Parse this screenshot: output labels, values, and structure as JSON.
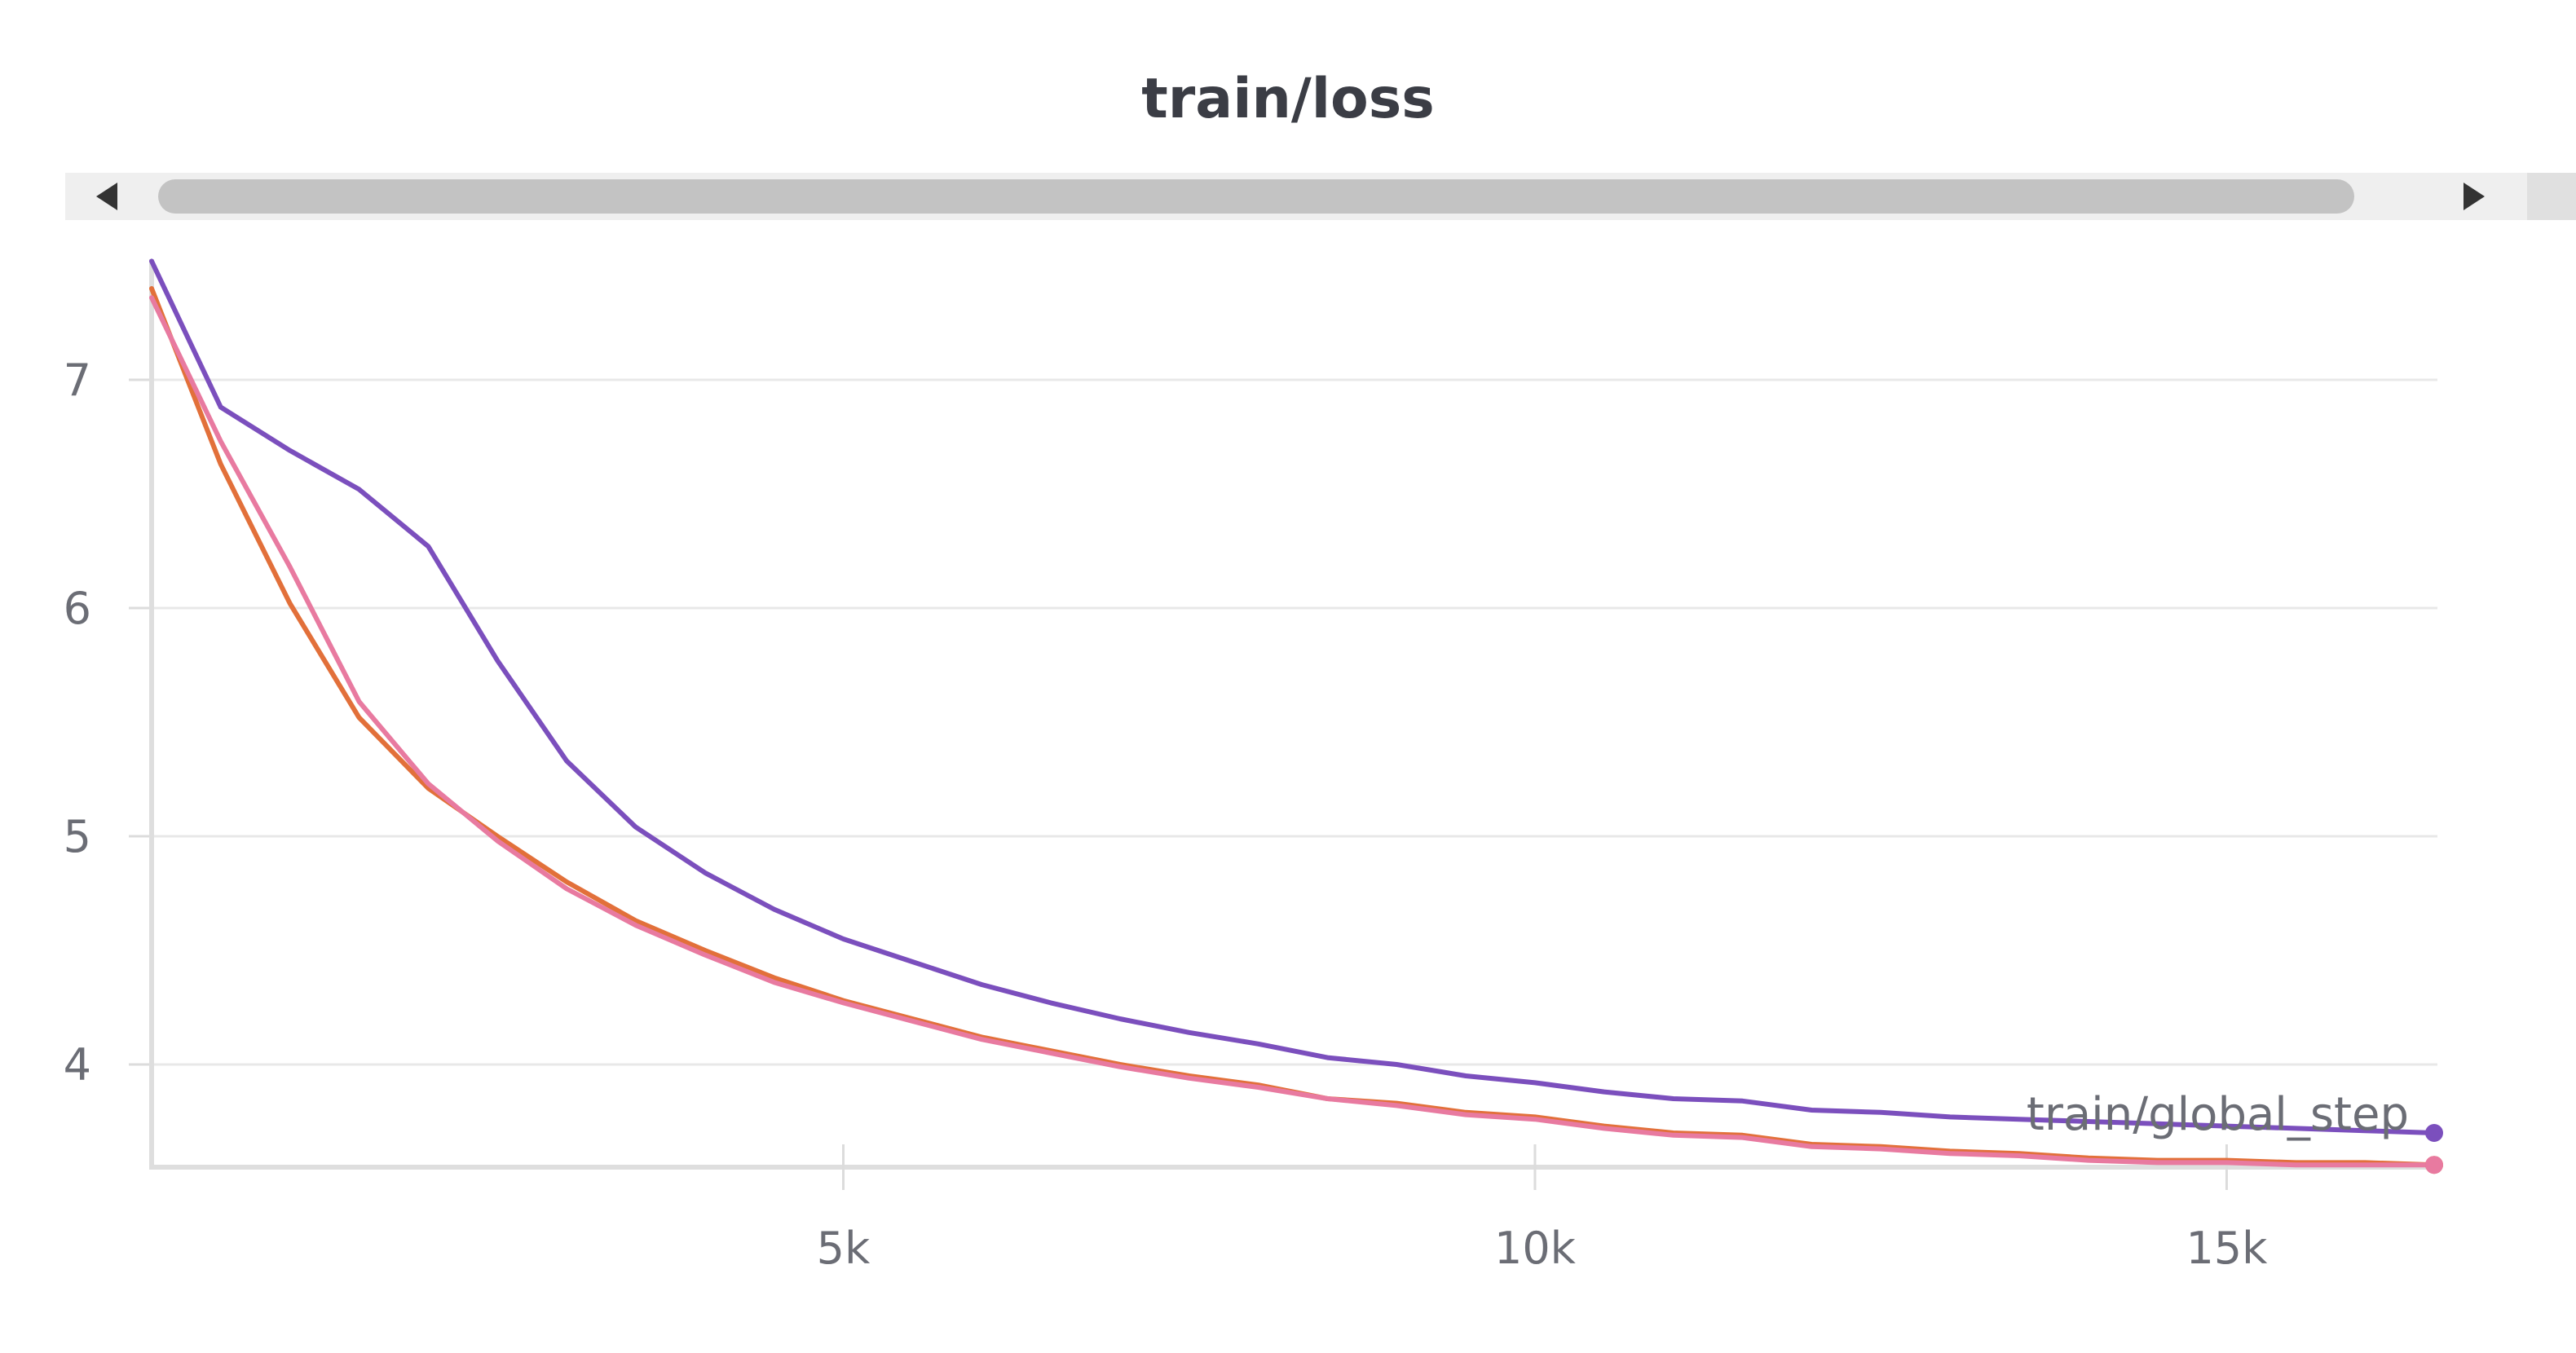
{
  "chart_data": {
    "type": "line",
    "title": "train/loss",
    "xlabel": "",
    "ylabel": "",
    "xlim": [
      0,
      16500
    ],
    "ylim": [
      3.55,
      7.55
    ],
    "xticks": [
      5000,
      10000,
      15000
    ],
    "xtick_labels": [
      "5k",
      "10k",
      "15k"
    ],
    "yticks": [
      4,
      5,
      6,
      7
    ],
    "ytick_labels": [
      "4",
      "5",
      "6",
      "7"
    ],
    "grid": "horizontal",
    "legend": "none",
    "end_label": "train/global_step",
    "series": [
      {
        "color": "#7b4fbd",
        "x": [
          0,
          500,
          1000,
          1500,
          2000,
          2500,
          3000,
          3500,
          4000,
          4500,
          5000,
          5500,
          6000,
          6500,
          7000,
          7500,
          8000,
          8500,
          9000,
          9500,
          10000,
          10500,
          11000,
          11500,
          12000,
          12500,
          13000,
          13500,
          14000,
          14500,
          15000,
          15500,
          16000,
          16500
        ],
        "y": [
          7.52,
          6.88,
          6.69,
          6.52,
          6.27,
          5.77,
          5.33,
          5.04,
          4.84,
          4.68,
          4.55,
          4.45,
          4.35,
          4.27,
          4.2,
          4.14,
          4.09,
          4.03,
          4.0,
          3.95,
          3.92,
          3.88,
          3.85,
          3.84,
          3.8,
          3.79,
          3.77,
          3.76,
          3.75,
          3.74,
          3.73,
          3.72,
          3.71,
          3.7
        ]
      },
      {
        "color": "#e2703a",
        "x": [
          0,
          500,
          1000,
          1500,
          2000,
          2500,
          3000,
          3500,
          4000,
          4500,
          5000,
          5500,
          6000,
          6500,
          7000,
          7500,
          8000,
          8500,
          9000,
          9500,
          10000,
          10500,
          11000,
          11500,
          12000,
          12500,
          13000,
          13500,
          14000,
          14500,
          15000,
          15500,
          16000,
          16500
        ],
        "y": [
          7.4,
          6.63,
          6.02,
          5.52,
          5.21,
          5.0,
          4.8,
          4.63,
          4.5,
          4.38,
          4.28,
          4.2,
          4.12,
          4.06,
          4.0,
          3.95,
          3.91,
          3.85,
          3.83,
          3.79,
          3.77,
          3.73,
          3.7,
          3.69,
          3.65,
          3.64,
          3.62,
          3.61,
          3.59,
          3.58,
          3.58,
          3.57,
          3.57,
          3.56
        ]
      },
      {
        "color": "#e87aa0",
        "x": [
          0,
          500,
          1000,
          1500,
          2000,
          2500,
          3000,
          3500,
          4000,
          4500,
          5000,
          5500,
          6000,
          6500,
          7000,
          7500,
          8000,
          8500,
          9000,
          9500,
          10000,
          10500,
          11000,
          11500,
          12000,
          12500,
          13000,
          13500,
          14000,
          14500,
          15000,
          15500,
          16000,
          16500
        ],
        "y": [
          7.36,
          6.73,
          6.18,
          5.59,
          5.23,
          4.98,
          4.77,
          4.61,
          4.48,
          4.36,
          4.27,
          4.19,
          4.11,
          4.05,
          3.99,
          3.94,
          3.9,
          3.85,
          3.82,
          3.78,
          3.76,
          3.72,
          3.69,
          3.68,
          3.64,
          3.63,
          3.61,
          3.6,
          3.58,
          3.57,
          3.57,
          3.56,
          3.56,
          3.56
        ]
      }
    ]
  }
}
